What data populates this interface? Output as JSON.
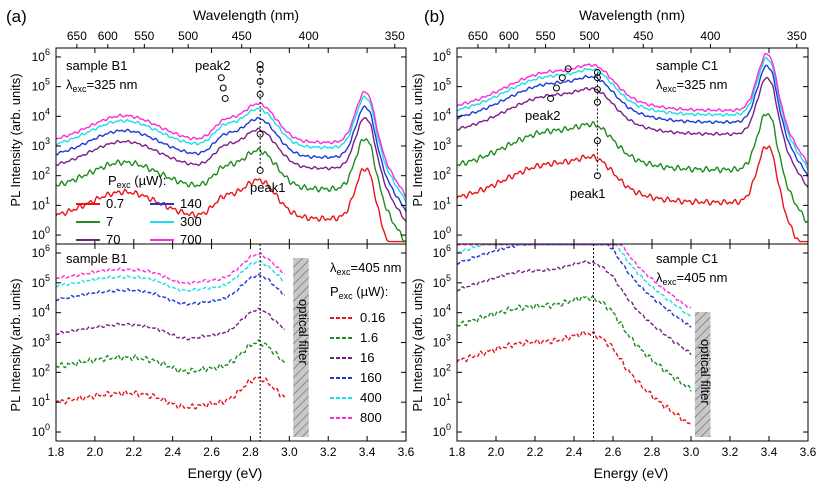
{
  "figure": {
    "xlabel": "Energy (eV)",
    "ylabel": "PL Intensity (arb. units)",
    "top_axis_label": "Wavelength (nm)",
    "panel_a": "(a)",
    "panel_b": "(b)",
    "filter_label": "optical filter",
    "peak1": "peak1",
    "peak2": "peak2",
    "power_symbol": "P",
    "power_sub": "exc",
    "power_unit": " (µW):",
    "lambda_symbol": "λ",
    "lambda_sub": "exc",
    "exc_325": "=325 nm",
    "exc_405": "=405 nm",
    "sample_b1": "sample B1",
    "sample_c1": "sample C1"
  },
  "chart_data": [
    {
      "type": "line",
      "id": "a-top",
      "title": "sample B1, λexc=325 nm",
      "xlabel": "Energy (eV)",
      "ylabel": "PL Intensity (arb. units)",
      "xlim": [
        1.8,
        3.6
      ],
      "ylim": [
        0.5,
        2000000
      ],
      "yscale": "log",
      "xticks": [
        "1.8",
        "2.0",
        "2.2",
        "2.4",
        "2.6",
        "2.8",
        "3.0",
        "3.2",
        "3.4",
        "3.6"
      ],
      "yticks": [
        "10^0",
        "10^1",
        "10^2",
        "10^3",
        "10^4",
        "10^5",
        "10^6"
      ],
      "top_ticks": [
        "650",
        "600",
        "550",
        "500",
        "450",
        "400",
        "350"
      ],
      "legend_title": "Pexc (µW)",
      "series": [
        {
          "name": "0.7",
          "color": "#e8141a",
          "peak1": 130
        },
        {
          "name": "7",
          "color": "#1e8c1e",
          "peak1": 2500
        },
        {
          "name": "70",
          "color": "#7a1f87",
          "peak1": 55000
        },
        {
          "name": "140",
          "color": "#1a3ad6",
          "peak1": 150000
        },
        {
          "name": "300",
          "color": "#18e0e8",
          "peak1": 380000
        },
        {
          "name": "700",
          "color": "#ff2ad8",
          "peak1": 550000
        }
      ],
      "annotations": [
        "peak1 ≈ 2.85 eV",
        "peak2 ≈ 2.67 eV"
      ]
    },
    {
      "type": "line",
      "id": "a-bottom",
      "title": "sample B1, λexc=405 nm",
      "xlabel": "Energy (eV)",
      "ylabel": "PL Intensity (arb. units)",
      "xlim": [
        1.8,
        3.6
      ],
      "ylim": [
        0.5,
        2000000
      ],
      "yscale": "log",
      "optical_filter_range": [
        3.0,
        3.1
      ],
      "series": [
        {
          "name": "0.16",
          "color": "#e8141a",
          "peak": 60
        },
        {
          "name": "1.6",
          "color": "#1e8c1e",
          "peak": 1000
        },
        {
          "name": "16",
          "color": "#7a1f87",
          "peak": 12000
        },
        {
          "name": "160",
          "color": "#1a3ad6",
          "peak": 170000
        },
        {
          "name": "400",
          "color": "#18e0e8",
          "peak": 480000
        },
        {
          "name": "800",
          "color": "#ff2ad8",
          "peak": 800000
        }
      ],
      "annotations": [
        "dotted line at 2.85 eV"
      ]
    },
    {
      "type": "line",
      "id": "b-top",
      "title": "sample C1, λexc=325 nm",
      "xlabel": "Energy (eV)",
      "xlim": [
        1.8,
        3.6
      ],
      "ylim": [
        0.5,
        2000000
      ],
      "yscale": "log",
      "series": [
        {
          "name": "0.7",
          "color": "#e8141a"
        },
        {
          "name": "7",
          "color": "#1e8c1e"
        },
        {
          "name": "70",
          "color": "#7a1f87"
        },
        {
          "name": "140",
          "color": "#1a3ad6"
        },
        {
          "name": "300",
          "color": "#18e0e8"
        },
        {
          "name": "700",
          "color": "#ff2ad8"
        }
      ],
      "annotations": [
        "peak1 ≈ 2.52 eV",
        "peak2 ≈ 2.3–2.37 eV"
      ]
    },
    {
      "type": "line",
      "id": "b-bottom",
      "title": "sample C1, λexc=405 nm",
      "xlabel": "Energy (eV)",
      "xlim": [
        1.8,
        3.6
      ],
      "ylim": [
        0.5,
        2000000
      ],
      "yscale": "log",
      "optical_filter_range": [
        3.02,
        3.1
      ],
      "series": [
        {
          "name": "0.16",
          "color": "#e8141a"
        },
        {
          "name": "1.6",
          "color": "#1e8c1e"
        },
        {
          "name": "16",
          "color": "#7a1f87"
        },
        {
          "name": "160",
          "color": "#1a3ad6"
        },
        {
          "name": "400",
          "color": "#18e0e8"
        },
        {
          "name": "800",
          "color": "#ff2ad8"
        }
      ],
      "annotations": [
        "dotted line at 2.50 eV"
      ]
    }
  ]
}
